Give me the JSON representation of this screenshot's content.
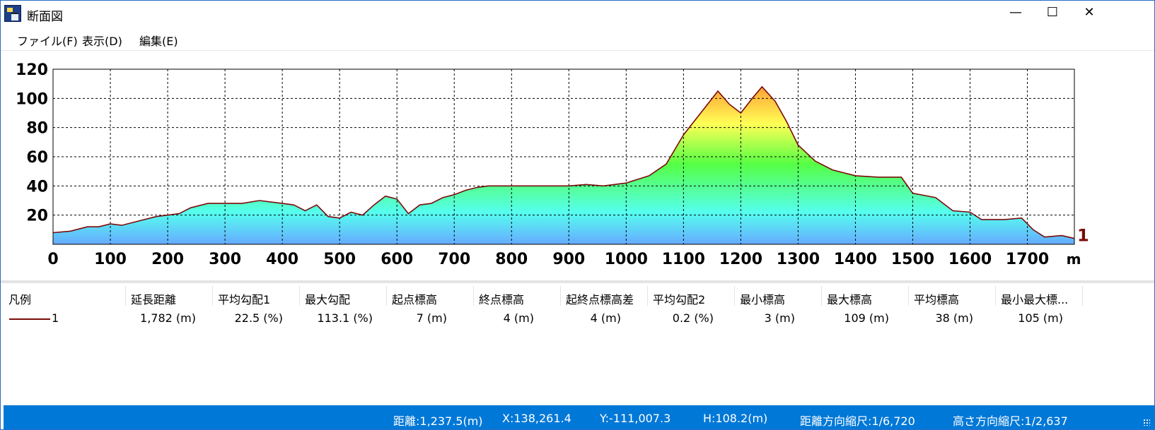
{
  "window": {
    "title": "断面図",
    "icon": "profile-app-icon",
    "controls": {
      "minimize": "—",
      "maximize": "☐",
      "close": "✕"
    }
  },
  "menu": [
    {
      "label": "ファイル(F)"
    },
    {
      "label": "表示(D)"
    },
    {
      "label": "編集(E)"
    }
  ],
  "chart_data": {
    "type": "area",
    "title": "",
    "xlabel": "m",
    "ylabel": "",
    "xlim": [
      0,
      1782
    ],
    "ylim": [
      0,
      120
    ],
    "x_ticks": [
      0,
      100,
      200,
      300,
      400,
      500,
      600,
      700,
      800,
      900,
      1000,
      1100,
      1200,
      1300,
      1400,
      1500,
      1600,
      1700
    ],
    "y_ticks": [
      20,
      40,
      60,
      80,
      100,
      120
    ],
    "grid": true,
    "series_label": "1",
    "line_color": "#7a0b0b",
    "gradient_colors": [
      "#ff9933",
      "#ffff55",
      "#55ff44",
      "#55ffee",
      "#66aaff"
    ],
    "points": [
      [
        0,
        8
      ],
      [
        30,
        9
      ],
      [
        60,
        12
      ],
      [
        80,
        12
      ],
      [
        100,
        14
      ],
      [
        120,
        13
      ],
      [
        150,
        16
      ],
      [
        180,
        19
      ],
      [
        200,
        20
      ],
      [
        220,
        21
      ],
      [
        240,
        25
      ],
      [
        270,
        28
      ],
      [
        300,
        28
      ],
      [
        330,
        28
      ],
      [
        360,
        30
      ],
      [
        400,
        28
      ],
      [
        420,
        27
      ],
      [
        440,
        23
      ],
      [
        460,
        27
      ],
      [
        480,
        19
      ],
      [
        500,
        18
      ],
      [
        520,
        22
      ],
      [
        540,
        20
      ],
      [
        560,
        27
      ],
      [
        580,
        33
      ],
      [
        600,
        31
      ],
      [
        620,
        21
      ],
      [
        640,
        27
      ],
      [
        660,
        28
      ],
      [
        680,
        32
      ],
      [
        700,
        34
      ],
      [
        720,
        37
      ],
      [
        740,
        39
      ],
      [
        760,
        40
      ],
      [
        800,
        40
      ],
      [
        840,
        40
      ],
      [
        880,
        40
      ],
      [
        900,
        40
      ],
      [
        930,
        41
      ],
      [
        960,
        40
      ],
      [
        1000,
        42
      ],
      [
        1040,
        47
      ],
      [
        1070,
        55
      ],
      [
        1100,
        75
      ],
      [
        1130,
        90
      ],
      [
        1160,
        105
      ],
      [
        1180,
        96
      ],
      [
        1200,
        90
      ],
      [
        1220,
        100
      ],
      [
        1237,
        108
      ],
      [
        1260,
        98
      ],
      [
        1280,
        84
      ],
      [
        1300,
        68
      ],
      [
        1330,
        57
      ],
      [
        1360,
        51
      ],
      [
        1400,
        47
      ],
      [
        1440,
        46
      ],
      [
        1480,
        46
      ],
      [
        1500,
        35
      ],
      [
        1540,
        32
      ],
      [
        1570,
        23
      ],
      [
        1600,
        22
      ],
      [
        1620,
        17
      ],
      [
        1660,
        17
      ],
      [
        1690,
        18
      ],
      [
        1710,
        10
      ],
      [
        1730,
        5
      ],
      [
        1760,
        6
      ],
      [
        1782,
        4
      ]
    ]
  },
  "table": {
    "headers": [
      "凡例",
      "延長距離",
      "平均勾配1",
      "最大勾配",
      "起点標高",
      "終点標高",
      "起終点標高差",
      "平均勾配2",
      "最小標高",
      "最大標高",
      "平均標高",
      "最小最大標..."
    ],
    "row": {
      "legend": "1",
      "length": "1,782 (m)",
      "avg_slope1": "22.5 (%)",
      "max_slope": "113.1 (%)",
      "start_elev": "7 (m)",
      "end_elev": "4 (m)",
      "diff": "4 (m)",
      "avg_slope2": "0.2 (%)",
      "min_elev": "3 (m)",
      "max_elev": "109 (m)",
      "avg_elev": "38 (m)",
      "minmax": "105 (m)"
    }
  },
  "status": {
    "distance": "距離:1,237.5(m)",
    "x": "X:138,261.4",
    "y": "Y:-111,007.3",
    "h": "H:108.2(m)",
    "dist_scale": "距離方向縮尺:1/6,720",
    "height_scale": "高さ方向縮尺:1/2,637"
  }
}
